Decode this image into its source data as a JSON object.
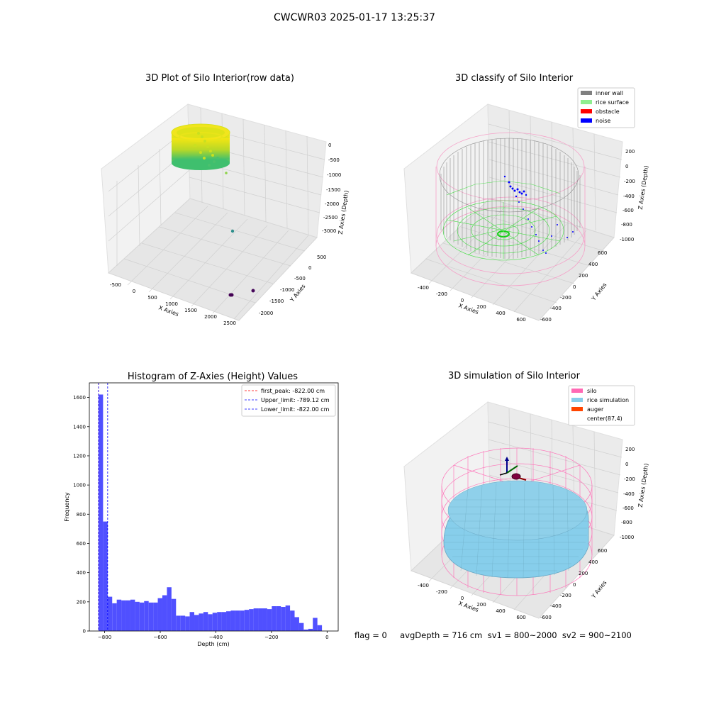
{
  "figure": {
    "suptitle": "CWCWR03 2025-01-17 13:25:37",
    "footer": "flag = 0     avgDepth = 716 cm  sv1 = 800~2000  sv2 = 900~2100"
  },
  "chart_data": [
    {
      "type": "scatter",
      "projection": "3d",
      "title": "3D Plot of Silo Interior(row data)",
      "xlabel": "X Axies",
      "ylabel": "Y Axies",
      "zlabel": "Z Axies (Depth)",
      "x_ticks": [
        "-500",
        "0",
        "500",
        "1000",
        "1500",
        "2000",
        "2500"
      ],
      "y_ticks": [
        "500",
        "0",
        "-500",
        "-1000",
        "-1500",
        "-2000"
      ],
      "z_ticks": [
        "0",
        "-500",
        "-1000",
        "-1500",
        "-2000",
        "-2500",
        "-3000"
      ],
      "xlim": [
        -600,
        2600
      ],
      "ylim": [
        -2200,
        700
      ],
      "zlim": [
        -3400,
        200
      ],
      "colormap": "viridis",
      "points": [
        {
          "x": 100,
          "y": 0,
          "z": -1000
        },
        {
          "x": 1200,
          "y": -300,
          "z": -1100
        },
        {
          "x": 2300,
          "y": -1700,
          "z": -2900
        },
        {
          "x": 2500,
          "y": -1200,
          "z": -3300
        }
      ],
      "grid": true
    },
    {
      "type": "scatter",
      "projection": "3d",
      "title": "3D classify of Silo Interior",
      "xlabel": "X Axies",
      "ylabel": "Y Axies",
      "zlabel": "Z Axies (Depth)",
      "x_ticks": [
        "-400",
        "-200",
        "0",
        "200",
        "400",
        "600"
      ],
      "y_ticks": [
        "600",
        "400",
        "200",
        "0",
        "-200",
        "-400",
        "-600"
      ],
      "z_ticks": [
        "200",
        "0",
        "-200",
        "-400",
        "-600",
        "-800",
        "-1000"
      ],
      "legend": [
        {
          "label": "inner wall",
          "color": "#808080"
        },
        {
          "label": "rice surface",
          "color": "#90ee90"
        },
        {
          "label": "obstacle",
          "color": "#ff0000"
        },
        {
          "label": "noise",
          "color": "#0000ff"
        }
      ],
      "legend_position": "upper right",
      "grid": true
    },
    {
      "type": "bar",
      "title": "Histogram of Z-Axies (Height) Values",
      "xlabel": "Depth (cm)",
      "ylabel": "Frequency",
      "xlim": [
        -855,
        40
      ],
      "ylim": [
        0,
        1700
      ],
      "x_ticks": [
        -800,
        -600,
        -400,
        -200,
        0
      ],
      "y_ticks": [
        0,
        200,
        400,
        600,
        800,
        1000,
        1200,
        1400,
        1600
      ],
      "bin_start": -822,
      "bin_width": 16.4,
      "values": [
        1620,
        750,
        235,
        190,
        215,
        210,
        210,
        215,
        200,
        195,
        205,
        195,
        195,
        225,
        245,
        300,
        220,
        105,
        105,
        100,
        130,
        110,
        120,
        130,
        115,
        125,
        130,
        130,
        135,
        140,
        140,
        140,
        145,
        150,
        155,
        155,
        155,
        150,
        170,
        170,
        165,
        175,
        140,
        95,
        55,
        10,
        15,
        90,
        40
      ],
      "bar_color": "#5050ff",
      "vlines": [
        {
          "label": "first_peak: -822.00 cm",
          "x": -822,
          "color": "#ff0000"
        },
        {
          "label": "Upper_limit: -789.12 cm",
          "x": -789.12,
          "color": "#0000ff"
        },
        {
          "label": "Lower_limit: -822.00 cm",
          "x": -822,
          "color": "#0000ff"
        }
      ],
      "legend_position": "upper right"
    },
    {
      "type": "surface",
      "projection": "3d",
      "title": "3D simulation of Silo Interior",
      "xlabel": "X Axies",
      "ylabel": "Y Axies",
      "zlabel": "Z Axies (Depth)",
      "x_ticks": [
        "-400",
        "-200",
        "0",
        "200",
        "400",
        "600"
      ],
      "y_ticks": [
        "600",
        "400",
        "200",
        "0",
        "-200",
        "-400",
        "-600"
      ],
      "z_ticks": [
        "200",
        "0",
        "-200",
        "-400",
        "-600",
        "-800",
        "-1000"
      ],
      "legend": [
        {
          "label": "silo",
          "color": "#ff69b4"
        },
        {
          "label": "rice simulation",
          "color": "#87ceeb"
        },
        {
          "label": "auger",
          "color": "#ff4500"
        },
        {
          "label": "center(87,4)",
          "color": ""
        }
      ],
      "legend_position": "upper right",
      "grid": true
    }
  ]
}
